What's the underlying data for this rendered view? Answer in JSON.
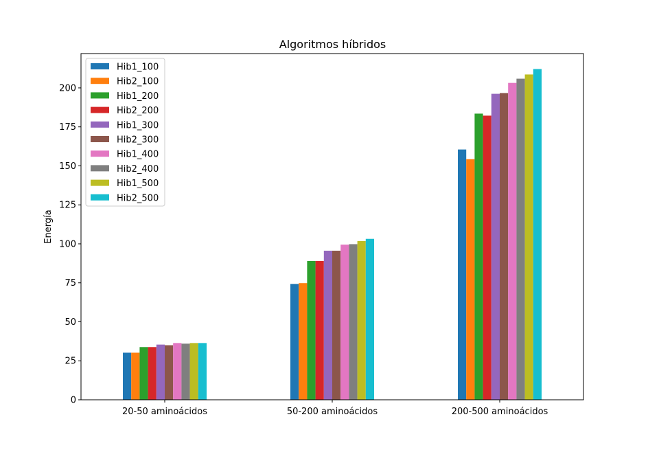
{
  "chart_data": {
    "type": "bar",
    "title": "Algoritmos híbridos",
    "xlabel": "",
    "ylabel": "Energía",
    "categories": [
      "20-50 aminoácidos",
      "50-200 aminoácidos",
      "200-500 aminoácidos"
    ],
    "ylim": [
      0,
      222
    ],
    "yticks": [
      0,
      25,
      50,
      75,
      100,
      125,
      150,
      175,
      200
    ],
    "grid": false,
    "legend": "top-left",
    "series": [
      {
        "name": "Hib1_100",
        "color": "#1f77b4",
        "values": [
          30.2,
          74.3,
          160.5
        ]
      },
      {
        "name": "Hib2_100",
        "color": "#ff7f0e",
        "values": [
          30.2,
          74.8,
          154.3
        ]
      },
      {
        "name": "Hib1_200",
        "color": "#2ca02c",
        "values": [
          33.8,
          89.0,
          183.5
        ]
      },
      {
        "name": "Hib2_200",
        "color": "#d62728",
        "values": [
          33.8,
          89.0,
          182.2
        ]
      },
      {
        "name": "Hib1_300",
        "color": "#9467bd",
        "values": [
          35.4,
          95.6,
          196.2
        ]
      },
      {
        "name": "Hib2_300",
        "color": "#8c564b",
        "values": [
          35.0,
          95.6,
          196.7
        ]
      },
      {
        "name": "Hib1_400",
        "color": "#e377c2",
        "values": [
          36.4,
          99.5,
          203.2
        ]
      },
      {
        "name": "Hib2_400",
        "color": "#7f7f7f",
        "values": [
          36.0,
          99.8,
          205.9
        ]
      },
      {
        "name": "Hib1_500",
        "color": "#bcbd22",
        "values": [
          36.4,
          101.8,
          208.6
        ]
      },
      {
        "name": "Hib2_500",
        "color": "#17becf",
        "values": [
          36.4,
          103.2,
          212.1
        ]
      }
    ]
  }
}
